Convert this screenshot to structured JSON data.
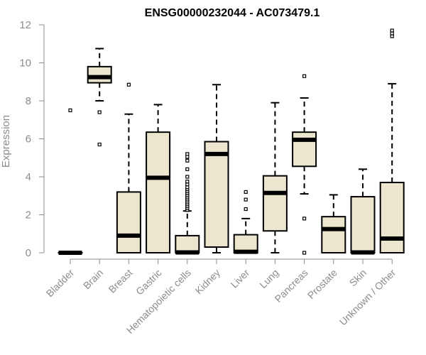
{
  "chart_data": {
    "type": "box",
    "title": "ENSG00000232044 - AC073479.1",
    "xlabel": "",
    "ylabel": "Expression",
    "ylim": [
      0,
      12
    ],
    "yticks": [
      0,
      2,
      4,
      6,
      8,
      10,
      12
    ],
    "box_color": "#ede6cf",
    "categories": [
      "Bladder",
      "Brain",
      "Breast",
      "Gastric",
      "Hematopoietic cells",
      "Kidney",
      "Liver",
      "Lung",
      "Pancreas",
      "Prostate",
      "Skin",
      "Unknown / Other"
    ],
    "boxes": [
      {
        "q1": 0,
        "median": 0,
        "q3": 0,
        "whisker_low": 0,
        "whisker_high": 0,
        "outliers": [
          7.5
        ]
      },
      {
        "q1": 8.95,
        "median": 9.25,
        "q3": 9.8,
        "whisker_low": 8.0,
        "whisker_high": 10.75,
        "outliers": [
          7.4,
          5.7
        ]
      },
      {
        "q1": 0,
        "median": 0.9,
        "q3": 3.2,
        "whisker_low": 0,
        "whisker_high": 7.3,
        "outliers": [
          8.85
        ]
      },
      {
        "q1": 0,
        "median": 3.95,
        "q3": 6.35,
        "whisker_low": 0,
        "whisker_high": 7.8,
        "outliers": []
      },
      {
        "q1": 0,
        "median": 0.02,
        "q3": 0.9,
        "whisker_low": 0,
        "whisker_high": 2.2,
        "outliers": [
          2.25,
          2.35,
          2.45,
          2.55,
          2.65,
          2.75,
          2.85,
          2.95,
          3.05,
          3.15,
          3.25,
          3.35,
          3.45,
          3.6,
          3.75,
          4.0,
          4.4,
          4.85,
          5.05,
          5.2
        ]
      },
      {
        "q1": 0.3,
        "median": 5.2,
        "q3": 5.85,
        "whisker_low": 0,
        "whisker_high": 8.85,
        "outliers": []
      },
      {
        "q1": 0,
        "median": 0.05,
        "q3": 0.95,
        "whisker_low": 0,
        "whisker_high": 1.8,
        "outliers": [
          2.3,
          2.8,
          3.2
        ]
      },
      {
        "q1": 1.15,
        "median": 3.15,
        "q3": 4.05,
        "whisker_low": 0,
        "whisker_high": 7.9,
        "outliers": []
      },
      {
        "q1": 4.55,
        "median": 5.95,
        "q3": 6.35,
        "whisker_low": 3.1,
        "whisker_high": 8.15,
        "outliers": [
          9.3,
          1.8,
          0
        ]
      },
      {
        "q1": 0,
        "median": 1.25,
        "q3": 1.9,
        "whisker_low": 0,
        "whisker_high": 3.05,
        "outliers": []
      },
      {
        "q1": 0,
        "median": 0.02,
        "q3": 2.95,
        "whisker_low": 0,
        "whisker_high": 4.4,
        "outliers": []
      },
      {
        "q1": 0,
        "median": 0.75,
        "q3": 3.7,
        "whisker_low": 0,
        "whisker_high": 8.9,
        "outliers": [
          11.4,
          11.55,
          11.7
        ]
      }
    ]
  }
}
